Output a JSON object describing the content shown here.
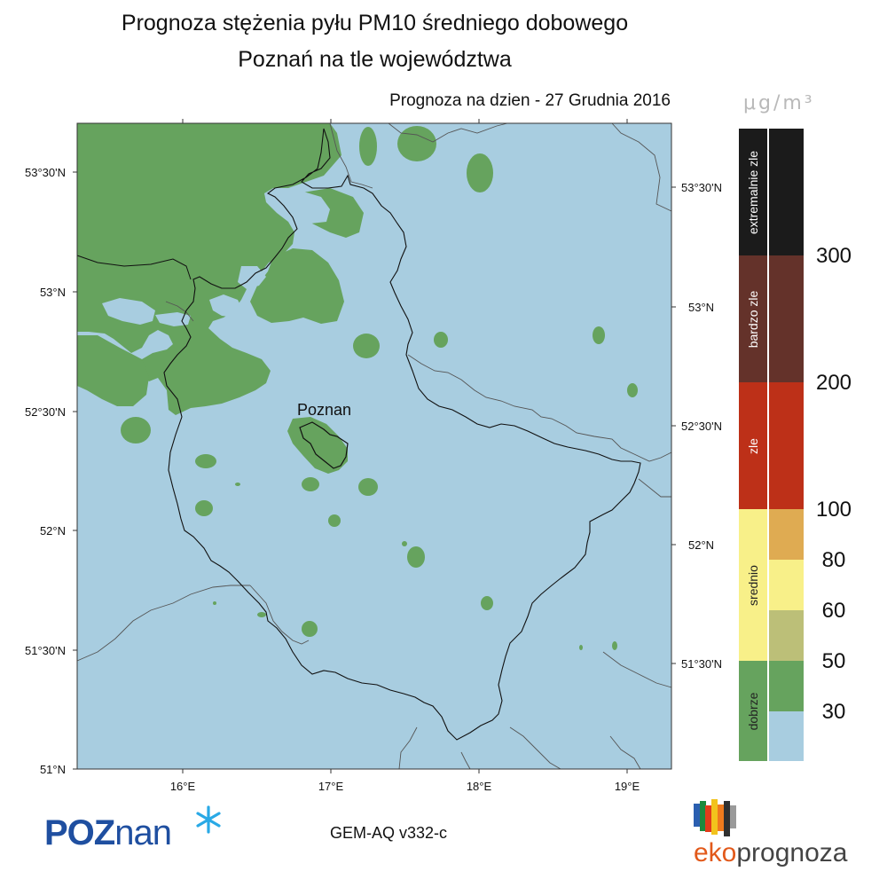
{
  "header": {
    "title_line1": "Prognoza stężenia pyłu PM10 średniego dobowego",
    "title_line2": "Poznań na tle województwa",
    "forecast_date": "Prognoza na dzien -  27 Grudnia 2016"
  },
  "map": {
    "city_label": "Poznan",
    "lat_labels_left": [
      "53°30'N",
      "53°N",
      "52°30'N",
      "52°N",
      "51°30'N",
      "51°N"
    ],
    "lat_labels_right": [
      "53°30'N",
      "53°N",
      "52°30'N",
      "52°N",
      "51°30'N"
    ],
    "lon_labels": [
      "16°E",
      "17°E",
      "18°E",
      "19°E"
    ],
    "colors": {
      "background": "#a8cde0",
      "good_fill": "#66a35e",
      "boundary": "#111111",
      "neighbor_boundary": "#555555"
    }
  },
  "legend": {
    "unit": "μg/m³",
    "categories": [
      {
        "label": "extremalnie zle",
        "color": "#1b1b1b"
      },
      {
        "label": "bardzo zle",
        "color": "#64322a"
      },
      {
        "label": "zle",
        "color": "#bd3018"
      },
      {
        "label": "srednio",
        "color": "#f8f089"
      },
      {
        "label": "dobrze",
        "color": "#66a35e"
      }
    ],
    "scale_colors": [
      "#1b1b1b",
      "#64322a",
      "#bd3018",
      "#dfab52",
      "#f8f089",
      "#bcbf78",
      "#66a35e",
      "#a8cde0"
    ],
    "levels": [
      "300",
      "200",
      "100",
      "80",
      "60",
      "50",
      "30"
    ]
  },
  "footer": {
    "logo_poznan_upper": "POZ",
    "logo_poznan_lower": "nan",
    "model": "GEM-AQ v332-c",
    "logo_eko_a": "eko",
    "logo_eko_b": "prognoza"
  }
}
